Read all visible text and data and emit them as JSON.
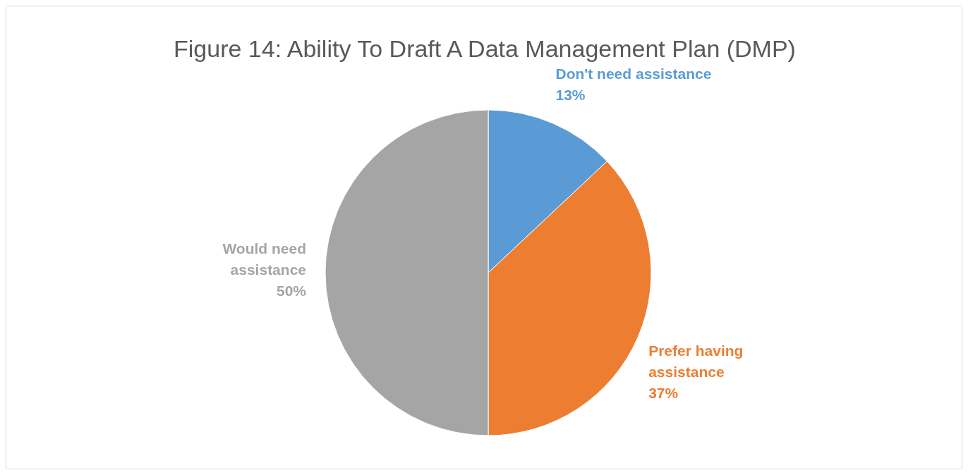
{
  "chart_data": {
    "type": "pie",
    "title": "Figure 14: Ability To Draft A Data Management Plan (DMP)",
    "categories": [
      "Don't need assistance",
      "Prefer having assistance",
      "Would need assistance"
    ],
    "values": [
      13,
      37,
      50
    ],
    "colors": [
      "#5b9bd5",
      "#ed7d31",
      "#a5a5a5"
    ],
    "value_labels": [
      "13%",
      "37%",
      "50%"
    ],
    "legend": false
  }
}
